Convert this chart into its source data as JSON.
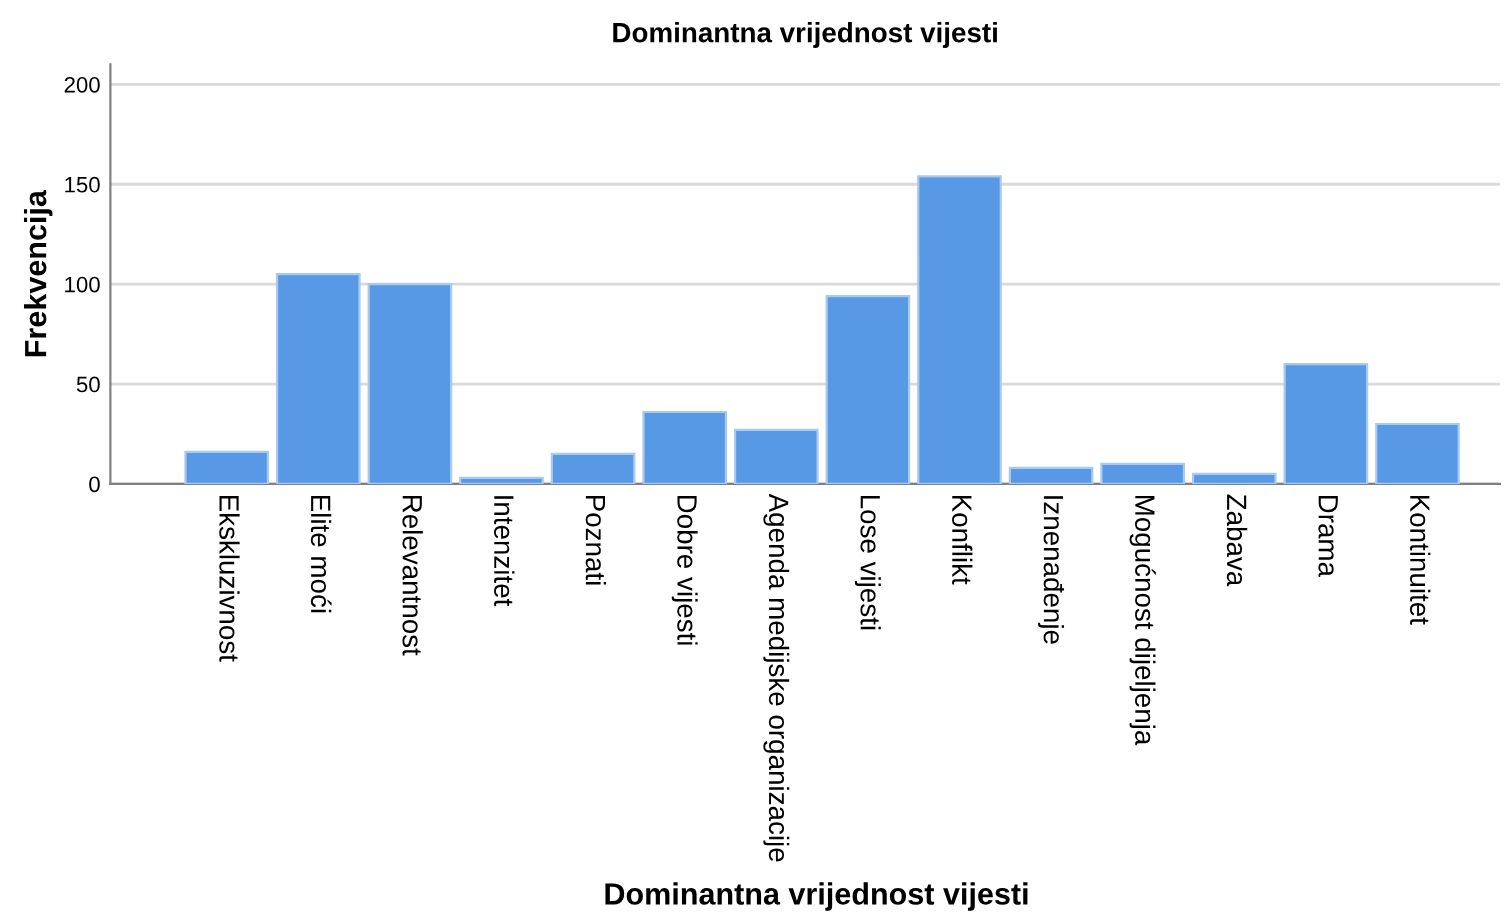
{
  "chart_data": {
    "type": "bar",
    "title": "Dominantna vrijednost vijesti",
    "xlabel": "Dominantna vrijednost vijesti",
    "ylabel": "Frekvencija",
    "categories": [
      "Ekskluzivnost",
      "Elite moći",
      "Relevantnost",
      "Intenzitet",
      "Poznati",
      "Dobre vijesti",
      "Agenda medijske organizacije",
      "Lose vijesti",
      "Konflikt",
      "Iznenađenje",
      "Mogućnost dijeljenja",
      "Zabava",
      "Drama",
      "Kontinuitet"
    ],
    "values": [
      16,
      105,
      100,
      3,
      15,
      36,
      27,
      94,
      154,
      8,
      10,
      5,
      60,
      30
    ],
    "color": "#5799e4",
    "ylim": [
      0,
      210
    ],
    "yticks": [
      0,
      50,
      100,
      150,
      200
    ],
    "grid": "y",
    "legend": false
  }
}
